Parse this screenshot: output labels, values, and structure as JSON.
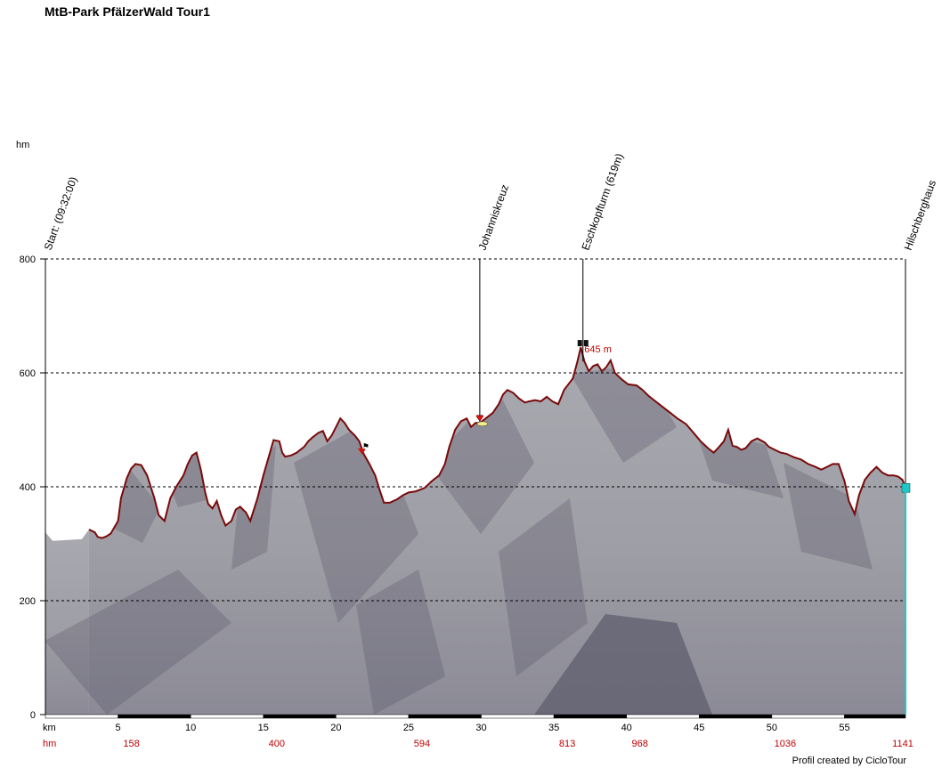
{
  "title": "MtB-Park PfälzerWald Tour1",
  "credit": "Profil created by CicloTour",
  "colors": {
    "profile_line": "#7a0a0a",
    "terrain_light": "#a9a9b0",
    "terrain_dark": "#5e5d6e",
    "hm_labels": "#c00000",
    "peak_label": "#c00000",
    "end_marker": "#22c6c6"
  },
  "chart_data": {
    "type": "area",
    "title": "MtB-Park PfälzerWald Tour1",
    "ylabel": "hm",
    "xlabel": "km",
    "ylim": [
      0,
      800
    ],
    "xlim": [
      0,
      59.2
    ],
    "y_ticks": [
      0,
      200,
      400,
      600,
      800
    ],
    "x_ticks": [
      5,
      10,
      15,
      20,
      25,
      30,
      35,
      40,
      45,
      50,
      55
    ],
    "grid": true,
    "grid_style": "dotted horizontal",
    "series": [
      {
        "x": [
          3,
          3.4,
          3.6,
          3.9,
          4.2,
          4.5,
          5,
          5.2,
          5.6,
          5.9,
          6.2,
          6.6,
          7.0,
          7.5,
          7.8,
          8.2,
          8.6,
          9.0,
          9.5,
          9.8,
          10.1,
          10.4,
          10.7,
          11.0,
          11.2,
          11.5,
          11.8,
          12.1,
          12.4,
          12.8,
          13.1,
          13.4,
          13.8,
          14.1,
          14.6,
          15.0,
          15.4,
          15.7,
          16.1,
          16.3,
          16.5,
          16.9,
          17.3,
          17.8,
          18.1,
          18.4,
          18.8,
          19.1,
          19.4,
          19.7,
          20.0,
          20.3,
          20.6,
          20.9,
          21.3,
          21.6,
          21.9,
          22.3,
          22.7,
          23.0,
          23.3,
          23.7,
          24.2,
          24.6,
          25.0,
          25.5,
          26.1,
          26.6,
          27.1,
          27.5,
          27.8,
          28.2,
          28.6,
          29.0,
          29.3,
          29.6,
          29.9,
          30.4,
          30.8,
          31.2,
          31.5,
          31.8,
          32.2,
          32.6,
          33.0,
          33.3,
          33.7,
          34.1,
          34.5,
          34.9,
          35.3,
          35.7,
          36.0,
          36.3,
          36.6,
          36.85,
          37.1,
          37.4,
          37.7,
          38.0,
          38.3,
          38.6,
          38.9,
          39.2,
          39.6,
          40.1,
          40.7,
          41.1,
          41.5,
          42.0,
          42.5,
          43.0,
          43.5,
          44.1,
          44.6,
          45.1,
          45.6,
          46.0,
          46.3,
          46.7,
          47.0,
          47.3,
          47.6,
          47.9,
          48.2,
          48.6,
          49.0,
          49.5,
          49.8,
          50.2,
          50.6,
          51.0,
          51.5,
          52.0,
          52.5,
          53.0,
          53.4,
          53.8,
          54.2,
          54.6,
          55.0,
          55.3,
          55.7,
          56.0,
          56.4,
          56.8,
          57.2,
          57.6,
          58.0,
          58.4,
          58.7,
          59.0,
          59.2
        ],
        "y": [
          325,
          320,
          312,
          310,
          313,
          318,
          340,
          380,
          415,
          432,
          440,
          438,
          420,
          380,
          350,
          340,
          380,
          400,
          420,
          440,
          455,
          460,
          430,
          390,
          370,
          362,
          375,
          350,
          332,
          340,
          360,
          365,
          355,
          340,
          380,
          420,
          455,
          482,
          480,
          460,
          453,
          455,
          460,
          470,
          480,
          487,
          495,
          498,
          480,
          490,
          505,
          520,
          512,
          500,
          490,
          480,
          458,
          440,
          420,
          395,
          372,
          372,
          378,
          385,
          390,
          392,
          398,
          410,
          420,
          440,
          470,
          500,
          515,
          520,
          505,
          512,
          512,
          522,
          530,
          545,
          562,
          570,
          565,
          555,
          548,
          550,
          552,
          550,
          558,
          550,
          545,
          570,
          580,
          590,
          618,
          645,
          620,
          603,
          612,
          615,
          603,
          610,
          622,
          600,
          590,
          580,
          578,
          570,
          560,
          550,
          540,
          530,
          520,
          510,
          495,
          480,
          468,
          460,
          468,
          480,
          500,
          472,
          470,
          465,
          468,
          480,
          485,
          478,
          470,
          465,
          460,
          458,
          452,
          448,
          440,
          435,
          430,
          435,
          440,
          440,
          410,
          375,
          352,
          385,
          412,
          425,
          435,
          425,
          420,
          420,
          418,
          412,
          398
        ]
      }
    ],
    "waypoints": [
      {
        "label": "Start: (09:32:00)",
        "km": 0
      },
      {
        "label": "Johanniskreuz",
        "km": 29.9
      },
      {
        "label": "Eschkopfturm (619m)",
        "km": 37.0
      },
      {
        "label": "Hilschberghaus",
        "km": 59.2
      }
    ],
    "peak_annotation": {
      "label": "645 m",
      "km": 36.85,
      "value": 645
    },
    "hm_row": [
      {
        "label": "hm",
        "km": null
      },
      {
        "label": "158",
        "km": 5
      },
      {
        "label": "400",
        "km": 15
      },
      {
        "label": "594",
        "km": 25
      },
      {
        "label": "813",
        "km": 35
      },
      {
        "label": "968",
        "km": 40
      },
      {
        "label": "1036",
        "km": 50
      },
      {
        "label": "1141",
        "km": 59.2
      }
    ]
  }
}
